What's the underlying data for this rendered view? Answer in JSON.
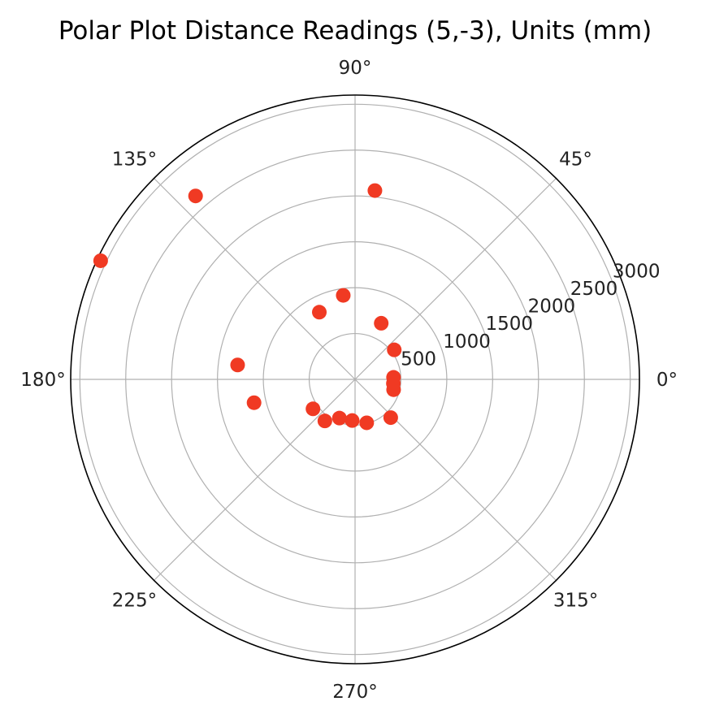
{
  "chart_data": {
    "type": "scatter",
    "projection": "polar",
    "title": "Polar Plot Distance Readings (5,-3), Units (mm)",
    "theta_unit": "degrees",
    "r_unit": "mm",
    "rlim": [
      0,
      3100
    ],
    "r_ticks": [
      500,
      1000,
      1500,
      2000,
      2500,
      3000
    ],
    "r_tick_labels": [
      "500",
      "1000",
      "1500",
      "2000",
      "2500",
      "3000"
    ],
    "r_label_angle_deg": 22.5,
    "theta_ticks": [
      0,
      45,
      90,
      135,
      180,
      225,
      270,
      315
    ],
    "theta_tick_labels": [
      "0°",
      "45°",
      "90°",
      "135°",
      "180°",
      "225°",
      "270°",
      "315°"
    ],
    "grid": true,
    "marker_color": "#f03a23",
    "points": [
      {
        "theta": 84,
        "r": 2070
      },
      {
        "theta": 98,
        "r": 925
      },
      {
        "theta": 118,
        "r": 830
      },
      {
        "theta": 131,
        "r": 2650
      },
      {
        "theta": 155,
        "r": 3060
      },
      {
        "theta": 173,
        "r": 1290
      },
      {
        "theta": 193,
        "r": 1130
      },
      {
        "theta": 215,
        "r": 560
      },
      {
        "theta": 234,
        "r": 560
      },
      {
        "theta": 248,
        "r": 455
      },
      {
        "theta": 266,
        "r": 450
      },
      {
        "theta": 285,
        "r": 490
      },
      {
        "theta": 313,
        "r": 570
      },
      {
        "theta": 345,
        "r": 435
      },
      {
        "theta": 354,
        "r": 420
      },
      {
        "theta": 3,
        "r": 420
      },
      {
        "theta": 37,
        "r": 535
      },
      {
        "theta": 65,
        "r": 675
      }
    ]
  }
}
